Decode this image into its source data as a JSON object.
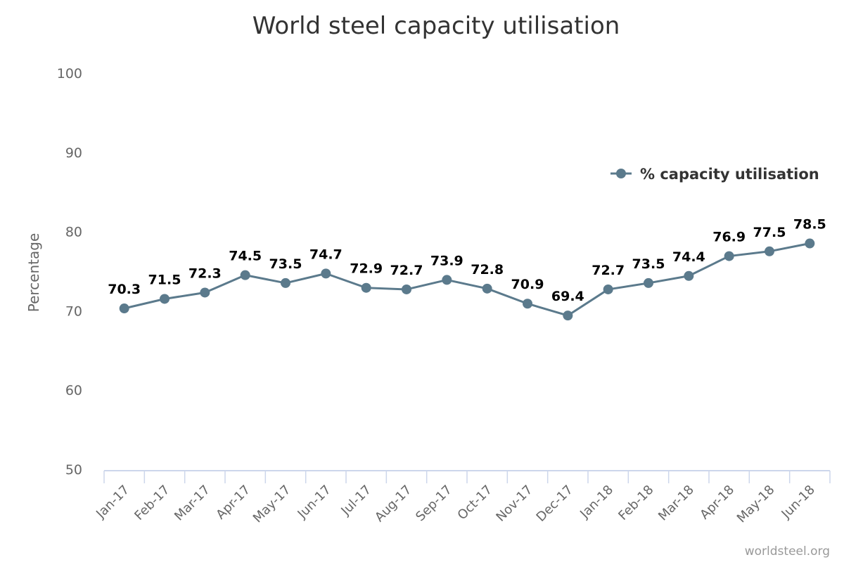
{
  "chart_data": {
    "type": "line",
    "title": "World steel capacity utilisation",
    "ylabel": "Percentage",
    "xlabel": "",
    "ylim": [
      50,
      100
    ],
    "yticks": [
      50,
      60,
      70,
      80,
      90,
      100
    ],
    "grid": false,
    "legend_position": "top-right",
    "categories": [
      "Jan-17",
      "Feb-17",
      "Mar-17",
      "Apr-17",
      "May-17",
      "Jun-17",
      "Jul-17",
      "Aug-17",
      "Sep-17",
      "Oct-17",
      "Nov-17",
      "Dec-17",
      "Jan-18",
      "Feb-18",
      "Mar-18",
      "Apr-18",
      "May-18",
      "Jun-18"
    ],
    "series": [
      {
        "name": "% capacity utilisation",
        "color": "#5b7a8c",
        "values": [
          70.3,
          71.5,
          72.3,
          74.5,
          73.5,
          74.7,
          72.9,
          72.7,
          73.9,
          72.8,
          70.9,
          69.4,
          72.7,
          73.5,
          74.4,
          76.9,
          77.5,
          78.5
        ],
        "labels": [
          "70.3",
          "71.5",
          "72.3",
          "74.5",
          "73.5",
          "74.7",
          "72.9",
          "72.7",
          "73.9",
          "72.8",
          "70.9",
          "69.4",
          "72.7",
          "73.5",
          "74.4",
          "76.9",
          "77.5",
          "78.5"
        ]
      }
    ],
    "credit": "worldsteel.org"
  },
  "colors": {
    "axis": "#ccd6eb",
    "text": "#666666",
    "title": "#333333"
  }
}
